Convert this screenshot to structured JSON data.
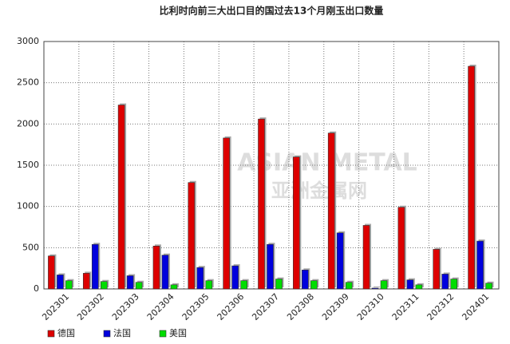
{
  "chart_data": {
    "type": "bar",
    "title": "比利时向前三大出口目的国过去13个月刚玉出口数量",
    "watermark": [
      "ASIAN METAL",
      "亚洲金属网"
    ],
    "categories": [
      "202301",
      "202302",
      "202303",
      "202304",
      "202305",
      "202306",
      "202307",
      "202308",
      "202309",
      "202310",
      "202311",
      "202312",
      "202401"
    ],
    "series": [
      {
        "name": "德国",
        "color": "#dd0000",
        "values": [
          400,
          190,
          2230,
          520,
          1290,
          1830,
          2060,
          1600,
          1890,
          770,
          990,
          480,
          2700
        ]
      },
      {
        "name": "法国",
        "color": "#0000dd",
        "values": [
          170,
          540,
          160,
          410,
          260,
          280,
          540,
          230,
          680,
          10,
          110,
          180,
          580
        ]
      },
      {
        "name": "美国",
        "color": "#00dd00",
        "values": [
          100,
          90,
          80,
          50,
          100,
          100,
          120,
          100,
          80,
          100,
          50,
          120,
          70
        ]
      }
    ],
    "ylim": [
      0,
      3000
    ],
    "yticks": [
      0,
      500,
      1000,
      1500,
      2000,
      2500,
      3000
    ],
    "grid": true,
    "legend": "bottom"
  }
}
